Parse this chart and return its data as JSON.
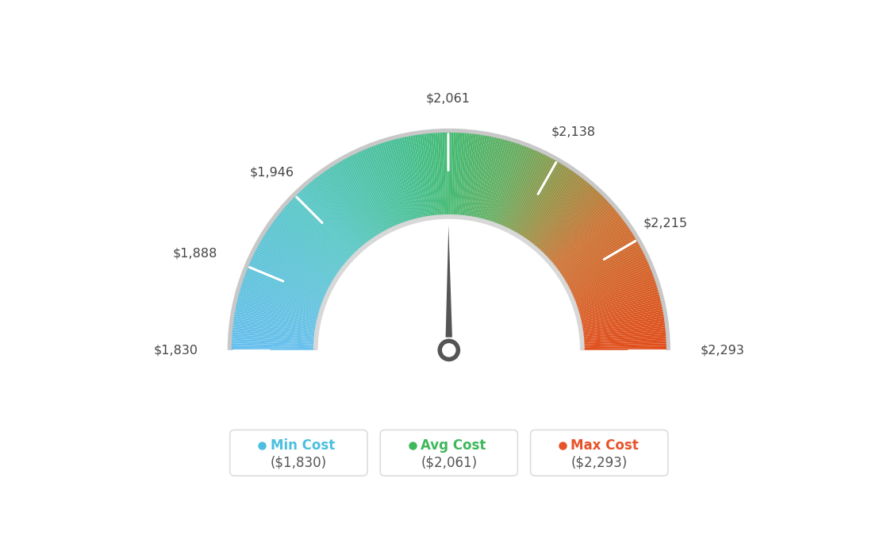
{
  "min_val": 1830,
  "avg_val": 2061,
  "max_val": 2293,
  "tick_labels": [
    "$1,830",
    "$1,888",
    "$1,946",
    "$2,061",
    "$2,138",
    "$2,215",
    "$2,293"
  ],
  "tick_values": [
    1830,
    1888,
    1946,
    2061,
    2138,
    2215,
    2293
  ],
  "color_stops": [
    [
      0.0,
      [
        0.4,
        0.75,
        0.93
      ]
    ],
    [
      0.25,
      [
        0.35,
        0.78,
        0.78
      ]
    ],
    [
      0.42,
      [
        0.28,
        0.75,
        0.58
      ]
    ],
    [
      0.5,
      [
        0.27,
        0.73,
        0.45
      ]
    ],
    [
      0.6,
      [
        0.4,
        0.68,
        0.38
      ]
    ],
    [
      0.68,
      [
        0.58,
        0.58,
        0.28
      ]
    ],
    [
      0.78,
      [
        0.8,
        0.45,
        0.2
      ]
    ],
    [
      1.0,
      [
        0.88,
        0.3,
        0.1
      ]
    ]
  ],
  "legend_items": [
    {
      "label": "Min Cost",
      "value": "($1,830)",
      "color": "#4bbfe0"
    },
    {
      "label": "Avg Cost",
      "value": "($2,061)",
      "color": "#3db85a"
    },
    {
      "label": "Max Cost",
      "value": "($2,293)",
      "color": "#e8522a"
    }
  ],
  "background_color": "#ffffff"
}
